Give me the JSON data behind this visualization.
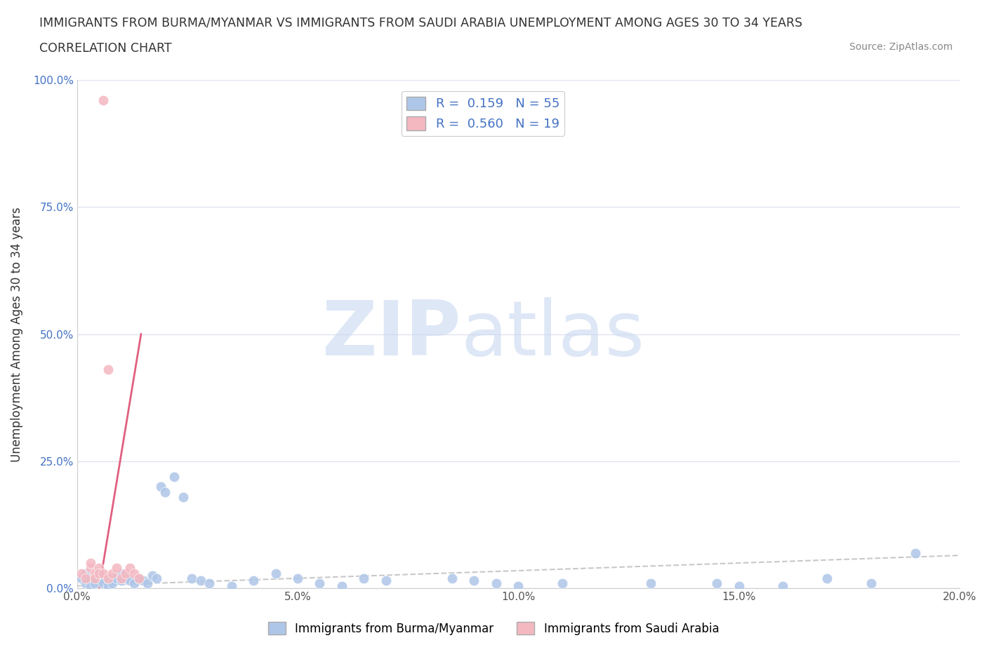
{
  "title_line1": "IMMIGRANTS FROM BURMA/MYANMAR VS IMMIGRANTS FROM SAUDI ARABIA UNEMPLOYMENT AMONG AGES 30 TO 34 YEARS",
  "title_line2": "CORRELATION CHART",
  "source_text": "Source: ZipAtlas.com",
  "ylabel": "Unemployment Among Ages 30 to 34 years",
  "xlim": [
    0.0,
    0.2
  ],
  "ylim": [
    0.0,
    1.0
  ],
  "xticks": [
    0.0,
    0.05,
    0.1,
    0.15,
    0.2
  ],
  "xticklabels": [
    "0.0%",
    "5.0%",
    "10.0%",
    "15.0%",
    "20.0%"
  ],
  "yticks": [
    0.0,
    0.25,
    0.5,
    0.75,
    1.0
  ],
  "yticklabels": [
    "0.0%",
    "25.0%",
    "50.0%",
    "75.0%",
    "100.0%"
  ],
  "legend_r1": "R =  0.159   N = 55",
  "legend_r2": "R =  0.560   N = 19",
  "legend_label1": "Immigrants from Burma/Myanmar",
  "legend_label2": "Immigrants from Saudi Arabia",
  "color_burma": "#aec6e8",
  "color_saudi": "#f4b8c1",
  "trendline_burma_color": "#bbbbbb",
  "trendline_saudi_color": "#e06080",
  "grid_color": "#e0e4f0",
  "watermark_zip": "ZIP",
  "watermark_atlas": "atlas",
  "watermark_color_zip": "#c8d8f0",
  "watermark_color_atlas": "#c8d8f0",
  "background_color": "#ffffff",
  "burma_x": [
    0.001,
    0.002,
    0.002,
    0.003,
    0.003,
    0.004,
    0.004,
    0.005,
    0.005,
    0.006,
    0.006,
    0.006,
    0.007,
    0.007,
    0.008,
    0.008,
    0.009,
    0.009,
    0.01,
    0.01,
    0.011,
    0.012,
    0.013,
    0.014,
    0.015,
    0.016,
    0.017,
    0.018,
    0.019,
    0.02,
    0.022,
    0.024,
    0.026,
    0.028,
    0.03,
    0.035,
    0.04,
    0.045,
    0.05,
    0.055,
    0.06,
    0.065,
    0.07,
    0.085,
    0.09,
    0.095,
    0.1,
    0.11,
    0.13,
    0.145,
    0.15,
    0.16,
    0.17,
    0.18,
    0.19
  ],
  "burma_y": [
    0.02,
    0.01,
    0.03,
    0.015,
    0.005,
    0.02,
    0.01,
    0.025,
    0.03,
    0.015,
    0.02,
    0.01,
    0.005,
    0.02,
    0.015,
    0.01,
    0.025,
    0.02,
    0.015,
    0.03,
    0.02,
    0.015,
    0.01,
    0.02,
    0.015,
    0.01,
    0.025,
    0.02,
    0.2,
    0.19,
    0.22,
    0.18,
    0.02,
    0.015,
    0.01,
    0.005,
    0.015,
    0.03,
    0.02,
    0.01,
    0.005,
    0.02,
    0.015,
    0.02,
    0.015,
    0.01,
    0.005,
    0.01,
    0.01,
    0.01,
    0.005,
    0.005,
    0.02,
    0.01,
    0.07
  ],
  "saudi_x": [
    0.001,
    0.002,
    0.003,
    0.003,
    0.004,
    0.004,
    0.005,
    0.005,
    0.006,
    0.006,
    0.007,
    0.007,
    0.008,
    0.009,
    0.01,
    0.011,
    0.012,
    0.013,
    0.014
  ],
  "saudi_y": [
    0.03,
    0.02,
    0.04,
    0.05,
    0.03,
    0.02,
    0.04,
    0.03,
    0.96,
    0.03,
    0.02,
    0.43,
    0.03,
    0.04,
    0.02,
    0.03,
    0.04,
    0.03,
    0.02
  ],
  "burma_trend_x": [
    0.0,
    0.2
  ],
  "burma_trend_y": [
    0.005,
    0.065
  ],
  "saudi_trend_x": [
    0.005,
    0.0145
  ],
  "saudi_trend_y": [
    0.0,
    0.5
  ]
}
